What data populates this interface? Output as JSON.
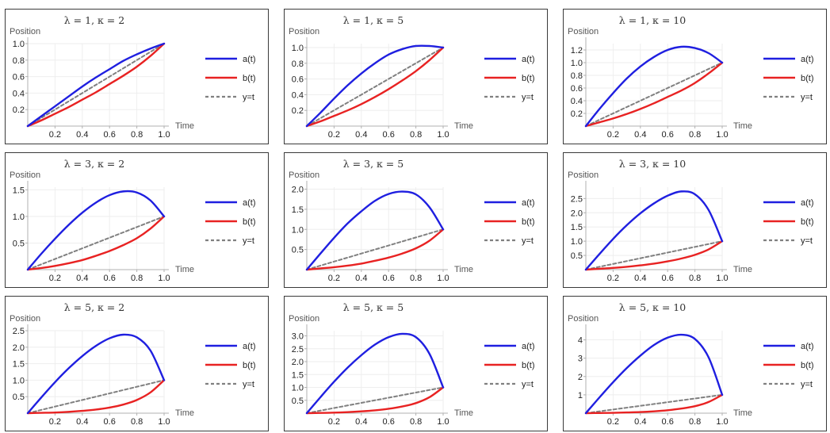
{
  "series_style": {
    "a": {
      "name": "a(t)",
      "color": "#1f1fe0",
      "dash": ""
    },
    "b": {
      "name": "b(t)",
      "color": "#e82222",
      "dash": ""
    },
    "y": {
      "name": "y=t",
      "color": "#808080",
      "dash": "4,3"
    }
  },
  "chart_data": [
    {
      "type": "line",
      "title": "λ = 1, κ = 2",
      "xlabel": "Time",
      "ylabel": "Position",
      "xlim": [
        0,
        1.0
      ],
      "ylim": [
        0,
        1.0
      ],
      "xticks": [
        "0.2",
        "0.4",
        "0.6",
        "0.8",
        "1.0"
      ],
      "yticks": [
        "0.2",
        "0.4",
        "0.6",
        "0.8",
        "1.0"
      ],
      "ytick_values": [
        0.2,
        0.4,
        0.6,
        0.8,
        1.0
      ],
      "series": [
        {
          "name": "a(t)",
          "x": [
            0,
            0.1,
            0.2,
            0.3,
            0.4,
            0.5,
            0.6,
            0.7,
            0.8,
            0.9,
            1.0
          ],
          "values": [
            0,
            0.12,
            0.24,
            0.36,
            0.48,
            0.59,
            0.69,
            0.79,
            0.87,
            0.94,
            1.0
          ]
        },
        {
          "name": "b(t)",
          "x": [
            0,
            0.1,
            0.2,
            0.3,
            0.4,
            0.5,
            0.6,
            0.7,
            0.8,
            0.9,
            1.0
          ],
          "values": [
            0,
            0.07,
            0.15,
            0.23,
            0.32,
            0.41,
            0.51,
            0.61,
            0.72,
            0.85,
            1.0
          ]
        },
        {
          "name": "y=t",
          "x": [
            0,
            1
          ],
          "values": [
            0,
            1
          ]
        }
      ]
    },
    {
      "type": "line",
      "title": "λ = 1, κ = 5",
      "xlabel": "Time",
      "ylabel": "Position",
      "xlim": [
        0,
        1.0
      ],
      "ylim": [
        0,
        1.05
      ],
      "xticks": [
        "0.2",
        "0.4",
        "0.6",
        "0.8",
        "1.0"
      ],
      "yticks": [
        "0.2",
        "0.4",
        "0.6",
        "0.8",
        "1.0"
      ],
      "ytick_values": [
        0.2,
        0.4,
        0.6,
        0.8,
        1.0
      ],
      "series": [
        {
          "name": "a(t)",
          "x": [
            0,
            0.1,
            0.2,
            0.3,
            0.4,
            0.5,
            0.6,
            0.7,
            0.8,
            0.9,
            1.0
          ],
          "values": [
            0,
            0.17,
            0.35,
            0.52,
            0.67,
            0.8,
            0.91,
            0.98,
            1.02,
            1.02,
            1.0
          ]
        },
        {
          "name": "b(t)",
          "x": [
            0,
            0.1,
            0.2,
            0.3,
            0.4,
            0.5,
            0.6,
            0.7,
            0.8,
            0.9,
            1.0
          ],
          "values": [
            0,
            0.06,
            0.13,
            0.2,
            0.28,
            0.37,
            0.47,
            0.58,
            0.7,
            0.84,
            1.0
          ]
        },
        {
          "name": "y=t",
          "x": [
            0,
            1
          ],
          "values": [
            0,
            1
          ]
        }
      ]
    },
    {
      "type": "line",
      "title": "λ = 1, κ = 10",
      "xlabel": "Time",
      "ylabel": "Position",
      "xlim": [
        0,
        1.0
      ],
      "ylim": [
        0,
        1.3
      ],
      "xticks": [
        "0.2",
        "0.4",
        "0.6",
        "0.8",
        "1.0"
      ],
      "yticks": [
        "0.2",
        "0.4",
        "0.6",
        "0.8",
        "1.0",
        "1.2"
      ],
      "ytick_values": [
        0.2,
        0.4,
        0.6,
        0.8,
        1.0,
        1.2
      ],
      "series": [
        {
          "name": "a(t)",
          "x": [
            0,
            0.1,
            0.2,
            0.3,
            0.4,
            0.5,
            0.6,
            0.7,
            0.8,
            0.9,
            1.0
          ],
          "values": [
            0,
            0.27,
            0.52,
            0.75,
            0.94,
            1.09,
            1.2,
            1.25,
            1.23,
            1.15,
            1.0
          ]
        },
        {
          "name": "b(t)",
          "x": [
            0,
            0.1,
            0.2,
            0.3,
            0.4,
            0.5,
            0.6,
            0.7,
            0.8,
            0.9,
            1.0
          ],
          "values": [
            0,
            0.06,
            0.12,
            0.19,
            0.27,
            0.36,
            0.46,
            0.56,
            0.68,
            0.83,
            1.0
          ]
        },
        {
          "name": "y=t",
          "x": [
            0,
            1
          ],
          "values": [
            0,
            1
          ]
        }
      ]
    },
    {
      "type": "line",
      "title": "λ = 3, κ = 2",
      "xlabel": "Time",
      "ylabel": "Position",
      "xlim": [
        0,
        1.0
      ],
      "ylim": [
        0,
        1.55
      ],
      "xticks": [
        "0.2",
        "0.4",
        "0.6",
        "0.8",
        "1.0"
      ],
      "yticks": [
        "0.5",
        "1.0",
        "1.5"
      ],
      "ytick_values": [
        0.5,
        1.0,
        1.5
      ],
      "series": [
        {
          "name": "a(t)",
          "x": [
            0,
            0.1,
            0.2,
            0.3,
            0.4,
            0.5,
            0.6,
            0.7,
            0.8,
            0.9,
            1.0
          ],
          "values": [
            0,
            0.3,
            0.58,
            0.84,
            1.07,
            1.26,
            1.4,
            1.47,
            1.45,
            1.3,
            1.0
          ]
        },
        {
          "name": "b(t)",
          "x": [
            0,
            0.1,
            0.2,
            0.3,
            0.4,
            0.5,
            0.6,
            0.7,
            0.8,
            0.9,
            1.0
          ],
          "values": [
            0,
            0.03,
            0.07,
            0.12,
            0.18,
            0.26,
            0.35,
            0.46,
            0.59,
            0.77,
            1.0
          ]
        },
        {
          "name": "y=t",
          "x": [
            0,
            1
          ],
          "values": [
            0,
            1
          ]
        }
      ]
    },
    {
      "type": "line",
      "title": "λ = 3, κ = 5",
      "xlabel": "Time",
      "ylabel": "Position",
      "xlim": [
        0,
        1.0
      ],
      "ylim": [
        0,
        2.05
      ],
      "xticks": [
        "0.2",
        "0.4",
        "0.6",
        "0.8",
        "1.0"
      ],
      "yticks": [
        "0.5",
        "1.0",
        "1.5",
        "2.0"
      ],
      "ytick_values": [
        0.5,
        1.0,
        1.5,
        2.0
      ],
      "series": [
        {
          "name": "a(t)",
          "x": [
            0,
            0.1,
            0.2,
            0.3,
            0.4,
            0.5,
            0.6,
            0.7,
            0.8,
            0.9,
            1.0
          ],
          "values": [
            0,
            0.4,
            0.79,
            1.15,
            1.45,
            1.71,
            1.88,
            1.94,
            1.87,
            1.55,
            1.0
          ]
        },
        {
          "name": "b(t)",
          "x": [
            0,
            0.1,
            0.2,
            0.3,
            0.4,
            0.5,
            0.6,
            0.7,
            0.8,
            0.9,
            1.0
          ],
          "values": [
            0,
            0.03,
            0.06,
            0.1,
            0.15,
            0.22,
            0.3,
            0.4,
            0.53,
            0.72,
            1.0
          ]
        },
        {
          "name": "y=t",
          "x": [
            0,
            1
          ],
          "values": [
            0,
            1
          ]
        }
      ]
    },
    {
      "type": "line",
      "title": "λ = 3, κ = 10",
      "xlabel": "Time",
      "ylabel": "Position",
      "xlim": [
        0,
        1.0
      ],
      "ylim": [
        0,
        2.9
      ],
      "xticks": [
        "0.2",
        "0.4",
        "0.6",
        "0.8",
        "1.0"
      ],
      "yticks": [
        "0.5",
        "1.0",
        "1.5",
        "2.0",
        "2.5"
      ],
      "ytick_values": [
        0.5,
        1.0,
        1.5,
        2.0,
        2.5
      ],
      "series": [
        {
          "name": "a(t)",
          "x": [
            0,
            0.1,
            0.2,
            0.3,
            0.4,
            0.5,
            0.6,
            0.7,
            0.8,
            0.9,
            1.0
          ],
          "values": [
            0,
            0.55,
            1.08,
            1.56,
            1.98,
            2.33,
            2.6,
            2.75,
            2.65,
            2.1,
            1.0
          ]
        },
        {
          "name": "b(t)",
          "x": [
            0,
            0.1,
            0.2,
            0.3,
            0.4,
            0.5,
            0.6,
            0.7,
            0.8,
            0.9,
            1.0
          ],
          "values": [
            0,
            0.03,
            0.06,
            0.1,
            0.15,
            0.21,
            0.29,
            0.39,
            0.52,
            0.71,
            1.0
          ]
        },
        {
          "name": "y=t",
          "x": [
            0,
            1
          ],
          "values": [
            0,
            1
          ]
        }
      ]
    },
    {
      "type": "line",
      "title": "λ = 5, κ = 2",
      "xlabel": "Time",
      "ylabel": "Position",
      "xlim": [
        0,
        1.0
      ],
      "ylim": [
        0,
        2.5
      ],
      "xticks": [
        "0.2",
        "0.4",
        "0.6",
        "0.8",
        "1.0"
      ],
      "yticks": [
        "0.5",
        "1.0",
        "1.5",
        "2.0",
        "2.5"
      ],
      "ytick_values": [
        0.5,
        1.0,
        1.5,
        2.0,
        2.5
      ],
      "series": [
        {
          "name": "a(t)",
          "x": [
            0,
            0.1,
            0.2,
            0.3,
            0.4,
            0.5,
            0.6,
            0.7,
            0.8,
            0.9,
            1.0
          ],
          "values": [
            0,
            0.48,
            0.94,
            1.36,
            1.73,
            2.04,
            2.27,
            2.38,
            2.3,
            1.9,
            1.0
          ]
        },
        {
          "name": "b(t)",
          "x": [
            0,
            0.1,
            0.2,
            0.3,
            0.4,
            0.5,
            0.6,
            0.7,
            0.8,
            0.9,
            1.0
          ],
          "values": [
            0,
            0.01,
            0.02,
            0.04,
            0.07,
            0.11,
            0.17,
            0.26,
            0.4,
            0.63,
            1.0
          ]
        },
        {
          "name": "y=t",
          "x": [
            0,
            1
          ],
          "values": [
            0,
            1
          ]
        }
      ]
    },
    {
      "type": "line",
      "title": "λ = 5, κ = 5",
      "xlabel": "Time",
      "ylabel": "Position",
      "xlim": [
        0,
        1.0
      ],
      "ylim": [
        0,
        3.2
      ],
      "xticks": [
        "0.2",
        "0.4",
        "0.6",
        "0.8",
        "1.0"
      ],
      "yticks": [
        "0.5",
        "1.0",
        "1.5",
        "2.0",
        "2.5",
        "3.0"
      ],
      "ytick_values": [
        0.5,
        1.0,
        1.5,
        2.0,
        2.5,
        3.0
      ],
      "series": [
        {
          "name": "a(t)",
          "x": [
            0,
            0.1,
            0.2,
            0.3,
            0.4,
            0.5,
            0.6,
            0.7,
            0.8,
            0.9,
            1.0
          ],
          "values": [
            0,
            0.62,
            1.22,
            1.77,
            2.25,
            2.66,
            2.95,
            3.08,
            2.95,
            2.3,
            1.0
          ]
        },
        {
          "name": "b(t)",
          "x": [
            0,
            0.1,
            0.2,
            0.3,
            0.4,
            0.5,
            0.6,
            0.7,
            0.8,
            0.9,
            1.0
          ],
          "values": [
            0,
            0.01,
            0.02,
            0.04,
            0.07,
            0.11,
            0.17,
            0.26,
            0.39,
            0.62,
            1.0
          ]
        },
        {
          "name": "y=t",
          "x": [
            0,
            1
          ],
          "values": [
            0,
            1
          ]
        }
      ]
    },
    {
      "type": "line",
      "title": "λ = 5, κ = 10",
      "xlabel": "Time",
      "ylabel": "Position",
      "xlim": [
        0,
        1.0
      ],
      "ylim": [
        0,
        4.5
      ],
      "xticks": [
        "0.2",
        "0.4",
        "0.6",
        "0.8",
        "1.0"
      ],
      "yticks": [
        "1",
        "2",
        "3",
        "4"
      ],
      "ytick_values": [
        1,
        2,
        3,
        4
      ],
      "series": [
        {
          "name": "a(t)",
          "x": [
            0,
            0.1,
            0.2,
            0.3,
            0.4,
            0.5,
            0.6,
            0.7,
            0.8,
            0.9,
            1.0
          ],
          "values": [
            0,
            0.86,
            1.69,
            2.46,
            3.14,
            3.72,
            4.12,
            4.28,
            4.05,
            3.05,
            1.0
          ]
        },
        {
          "name": "b(t)",
          "x": [
            0,
            0.1,
            0.2,
            0.3,
            0.4,
            0.5,
            0.6,
            0.7,
            0.8,
            0.9,
            1.0
          ],
          "values": [
            0,
            0.01,
            0.02,
            0.04,
            0.06,
            0.1,
            0.16,
            0.25,
            0.38,
            0.61,
            1.0
          ]
        },
        {
          "name": "y=t",
          "x": [
            0,
            1
          ],
          "values": [
            0,
            1
          ]
        }
      ]
    }
  ]
}
